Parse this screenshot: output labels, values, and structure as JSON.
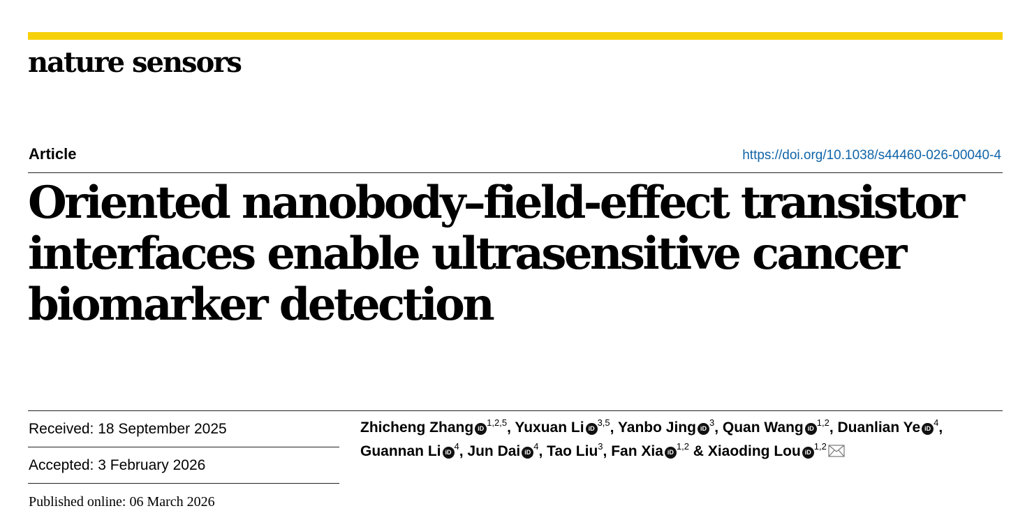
{
  "journal": "nature sensors",
  "article_type": "Article",
  "doi": "https://doi.org/10.1038/s44460-026-00040-4",
  "title": "Oriented nanobody–field-effect transistor interfaces enable ultrasensitive cancer biomarker detection",
  "dates": {
    "received": "Received: 18 September 2025",
    "accepted": "Accepted: 3 February 2026",
    "published": "Published online: 06 March 2026"
  },
  "authors": [
    {
      "name": "Zhicheng Zhang",
      "affil": "1,2,5",
      "orcid": true,
      "sep": ", "
    },
    {
      "name": "Yuxuan Li",
      "affil": "3,5",
      "orcid": true,
      "sep": ", "
    },
    {
      "name": "Yanbo Jing",
      "affil": "3",
      "orcid": true,
      "sep": ", "
    },
    {
      "name": "Quan Wang",
      "affil": "1,2",
      "orcid": true,
      "sep": ", "
    },
    {
      "name": "Duanlian Ye",
      "affil": "4",
      "orcid": true,
      "sep": ", "
    },
    {
      "name": "Guannan Li",
      "affil": "4",
      "orcid": true,
      "sep": ", "
    },
    {
      "name": "Jun Dai",
      "affil": "4",
      "orcid": true,
      "sep": ", "
    },
    {
      "name": "Tao Liu",
      "affil": "3",
      "orcid": false,
      "sep": ", "
    },
    {
      "name": "Fan Xia",
      "affil": "1,2",
      "orcid": true,
      "sep": " & "
    },
    {
      "name": "Xiaoding Lou",
      "affil": "1,2",
      "orcid": true,
      "sep": ""
    }
  ],
  "orcid_label": "iD",
  "icons": {
    "orcid": "orcid-icon",
    "mail": "envelope-icon"
  }
}
